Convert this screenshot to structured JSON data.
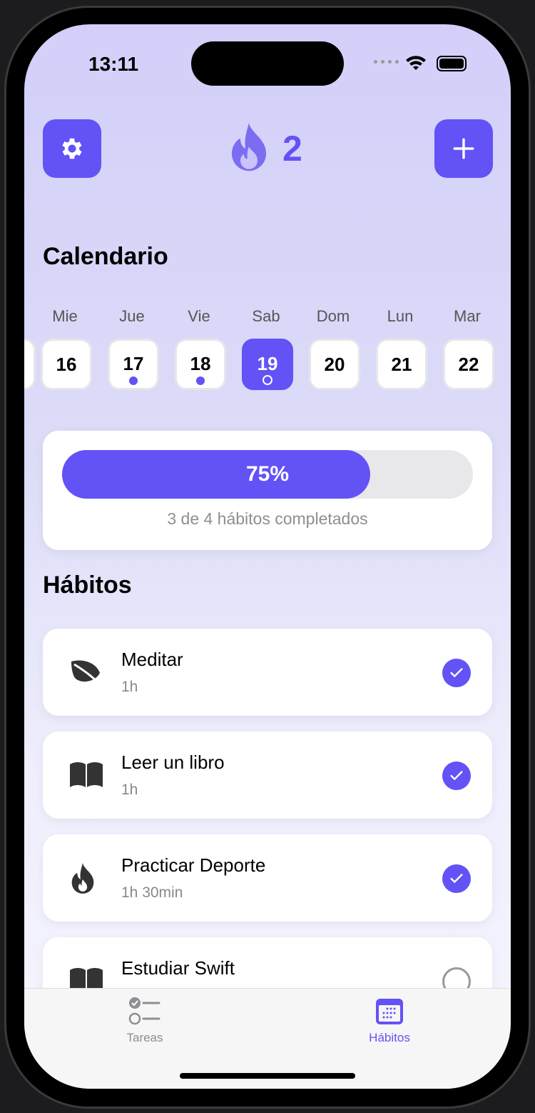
{
  "status_bar": {
    "time": "13:11"
  },
  "header": {
    "streak_count": "2",
    "settings_icon": "gear-icon",
    "streak_icon": "flame-icon",
    "add_icon": "plus-icon"
  },
  "colors": {
    "accent": "#6352f5"
  },
  "calendar": {
    "title": "Calendario",
    "days": [
      {
        "weekday": "Mie",
        "date": "16",
        "marker": "none"
      },
      {
        "weekday": "Jue",
        "date": "17",
        "marker": "dot"
      },
      {
        "weekday": "Vie",
        "date": "18",
        "marker": "dot"
      },
      {
        "weekday": "Sab",
        "date": "19",
        "marker": "ring",
        "selected": true
      },
      {
        "weekday": "Dom",
        "date": "20",
        "marker": "none"
      },
      {
        "weekday": "Lun",
        "date": "21",
        "marker": "none"
      },
      {
        "weekday": "Mar",
        "date": "22",
        "marker": "none"
      }
    ]
  },
  "progress": {
    "percent": 75,
    "label": "75%",
    "caption": "3 de 4 hábitos completados"
  },
  "habits": {
    "title": "Hábitos",
    "items": [
      {
        "name": "Meditar",
        "duration": "1h",
        "icon": "leaf-icon",
        "done": true
      },
      {
        "name": "Leer un libro",
        "duration": "1h",
        "icon": "book-icon",
        "done": true
      },
      {
        "name": "Practicar Deporte",
        "duration": "1h 30min",
        "icon": "flame-icon",
        "done": true
      },
      {
        "name": "Estudiar Swift",
        "duration": "",
        "icon": "book-icon",
        "done": false
      }
    ]
  },
  "tabbar": {
    "tabs": [
      {
        "label": "Tareas",
        "icon": "checklist-icon",
        "active": false
      },
      {
        "label": "Hábitos",
        "icon": "calendar-icon",
        "active": true
      }
    ]
  }
}
